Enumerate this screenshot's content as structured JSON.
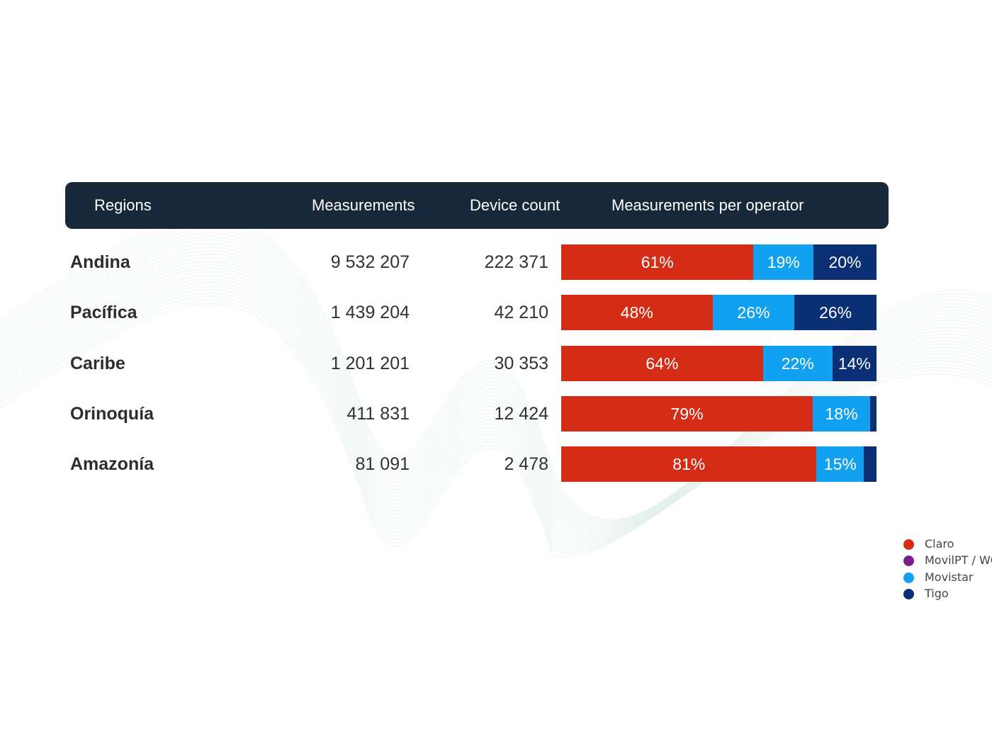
{
  "header": {
    "regions": "Regions",
    "measurements": "Measurements",
    "device_count": "Device count",
    "per_operator": "Measurements per operator"
  },
  "colors": {
    "header_bg": "#16283a",
    "Claro": "#d42c15",
    "MovilPT / WOM": "#7b1f8a",
    "Movistar": "#12a0f0",
    "Tigo": "#0b2f75"
  },
  "chart_data": {
    "type": "bar",
    "orientation": "horizontal",
    "stacked": "100%",
    "categories": [
      "Andina",
      "Pacífica",
      "Caribe",
      "Orinoquía",
      "Amazonía"
    ],
    "measurements": [
      "9 532 207",
      "1 439 204",
      "1 201 201",
      "411 831",
      "81 091"
    ],
    "device_count": [
      "222 371",
      "42 210",
      "30 353",
      "12 424",
      "2 478"
    ],
    "series": [
      {
        "name": "Claro",
        "values": [
          61,
          48,
          64,
          79,
          81
        ],
        "labels": [
          "61%",
          "48%",
          "64%",
          "79%",
          "81%"
        ]
      },
      {
        "name": "MovilPT / WOM",
        "values": [
          0,
          0,
          0,
          0,
          0
        ],
        "labels": [
          "",
          "",
          "",
          "",
          ""
        ]
      },
      {
        "name": "Movistar",
        "values": [
          19,
          26,
          22,
          18,
          15
        ],
        "labels": [
          "19%",
          "26%",
          "22%",
          "18%",
          "15%"
        ]
      },
      {
        "name": "Tigo",
        "values": [
          20,
          26,
          14,
          2,
          4
        ],
        "labels": [
          "20%",
          "26%",
          "14%",
          "",
          ""
        ]
      }
    ],
    "legend_position": "bottom-right"
  },
  "legend": [
    {
      "name": "Claro",
      "color": "#d42c15"
    },
    {
      "name": "MovilPT / WOM",
      "color": "#7b1f8a"
    },
    {
      "name": "Movistar",
      "color": "#12a0f0"
    },
    {
      "name": "Tigo",
      "color": "#0b2f75"
    }
  ]
}
